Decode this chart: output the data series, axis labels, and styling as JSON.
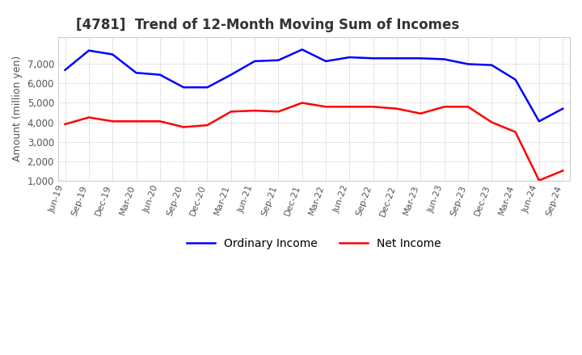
{
  "title": "[4781]  Trend of 12-Month Moving Sum of Incomes",
  "ylabel": "Amount (million yen)",
  "title_color": "#333333",
  "background_color": "#ffffff",
  "plot_background": "#ffffff",
  "grid_color": "#aaaaaa",
  "ordinary_income_color": "#0000ff",
  "net_income_color": "#ff0000",
  "ylim": [
    1000,
    8000
  ],
  "yticks": [
    1000,
    2000,
    3000,
    4000,
    5000,
    6000,
    7000
  ],
  "x_labels": [
    "Jun-19",
    "Sep-19",
    "Dec-19",
    "Mar-20",
    "Jun-20",
    "Sep-20",
    "Dec-20",
    "Mar-21",
    "Jun-21",
    "Sep-21",
    "Dec-21",
    "Mar-22",
    "Jun-22",
    "Sep-22",
    "Dec-22",
    "Mar-23",
    "Jun-23",
    "Sep-23",
    "Dec-23",
    "Mar-24",
    "Jun-24",
    "Sep-24"
  ],
  "ordinary_income": [
    6700,
    7700,
    7500,
    6550,
    6450,
    5800,
    5800,
    6450,
    7150,
    7200,
    7750,
    7150,
    7350,
    7300,
    7300,
    7300,
    7250,
    7000,
    6950,
    6200,
    4050,
    4700
  ],
  "net_income": [
    3900,
    4250,
    4050,
    4050,
    4050,
    3750,
    3850,
    4550,
    4600,
    4550,
    5000,
    4800,
    4800,
    4800,
    4700,
    4450,
    4800,
    4800,
    4000,
    3500,
    1000,
    1500
  ]
}
